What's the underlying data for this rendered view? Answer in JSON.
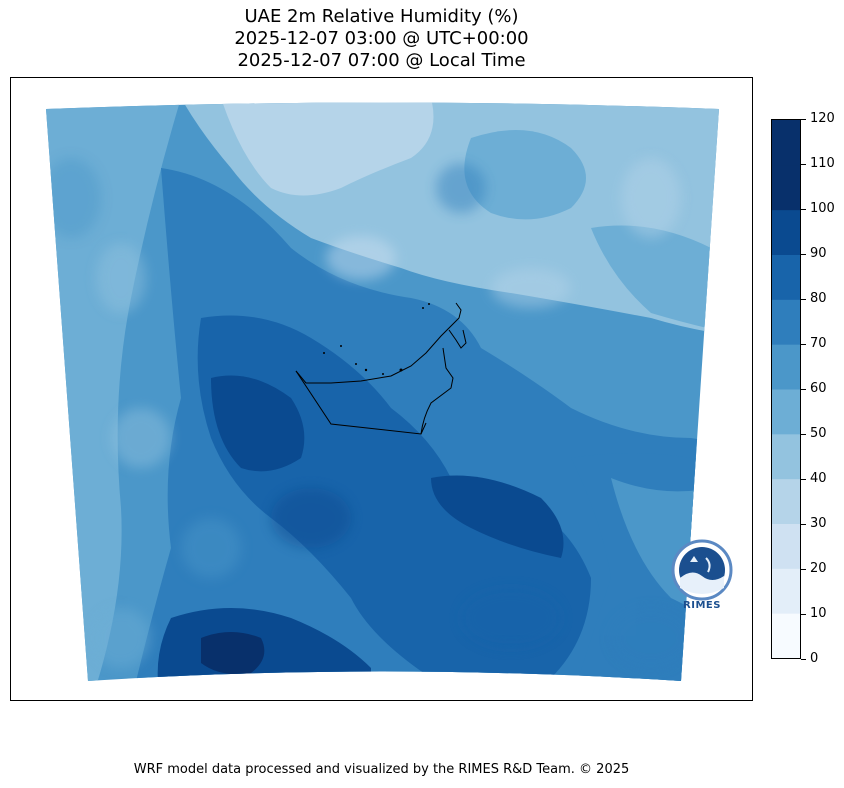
{
  "title": {
    "line1": "UAE 2m Relative Humidity (%)",
    "line2": "2025-12-07 03:00 @ UTC+00:00",
    "line3": "2025-12-07 07:00 @ Local Time"
  },
  "colorbar": {
    "min": 0,
    "max": 120,
    "ticks": [
      "0",
      "10",
      "20",
      "30",
      "40",
      "50",
      "60",
      "70",
      "80",
      "90",
      "100",
      "110",
      "120"
    ],
    "colors": [
      "#f7fbff",
      "#e3eef9",
      "#cfe1f2",
      "#b5d4e9",
      "#93c3df",
      "#6daed5",
      "#4b97c9",
      "#2f7ebc",
      "#1864aa",
      "#0a4a90",
      "#08306b",
      "#08306b"
    ]
  },
  "logo": {
    "text": "RIMES"
  },
  "footer": "WRF model data processed and visualized by the RIMES R&D Team. © 2025"
}
